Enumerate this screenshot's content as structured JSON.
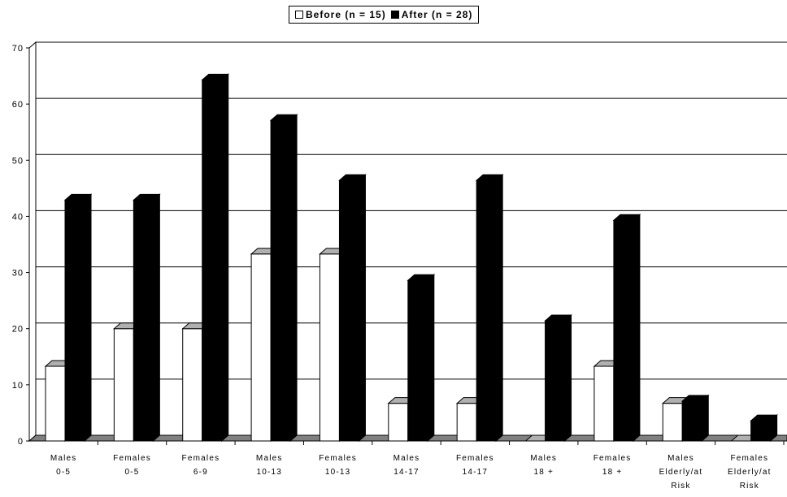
{
  "chart_data": {
    "type": "bar",
    "title": "",
    "xlabel": "",
    "ylabel": "",
    "ylim": [
      0,
      70
    ],
    "yticks": [
      "0",
      "10",
      "20",
      "30",
      "40",
      "50",
      "60",
      "70"
    ],
    "grid": true,
    "legend_position": "top-center",
    "style": "3d-bars",
    "categories": [
      [
        "Males",
        "0-5"
      ],
      [
        "Females",
        "0-5"
      ],
      [
        "Females",
        "6-9"
      ],
      [
        "Males",
        "10-13"
      ],
      [
        "Females",
        "10-13"
      ],
      [
        "Males",
        "14-17"
      ],
      [
        "Females",
        "14-17"
      ],
      [
        "Males",
        "18 +"
      ],
      [
        "Females",
        "18 +"
      ],
      [
        "Males",
        "Elderly/at",
        "Risk"
      ],
      [
        "Females",
        "Elderly/at",
        "Risk"
      ]
    ],
    "series": [
      {
        "name": "Before (n = 15)",
        "color": "#ffffff",
        "values": [
          13.3,
          20.0,
          20.0,
          33.3,
          33.3,
          6.7,
          6.7,
          0,
          13.3,
          6.7,
          0
        ]
      },
      {
        "name": "After (n = 28)",
        "color": "#000000",
        "values": [
          42.9,
          42.9,
          64.3,
          57.1,
          46.4,
          28.6,
          46.4,
          21.4,
          39.3,
          7.1,
          3.6
        ]
      }
    ]
  }
}
